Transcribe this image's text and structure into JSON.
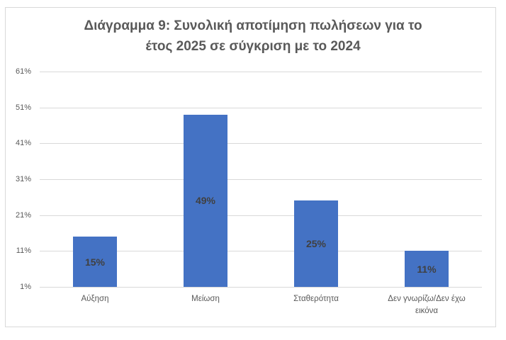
{
  "chart_data": {
    "type": "bar",
    "title": "Διάγραμμα 9: Συνολική αποτίμηση πωλήσεων για το έτος 2025 σε σύγκριση με το 2024",
    "title_lines": [
      "Διάγραμμα 9: Συνολική αποτίμηση πωλήσεων για το",
      "έτος 2025 σε σύγκριση με το 2024"
    ],
    "categories": [
      "Αύξηση",
      "Μείωση",
      "Σταθερότητα",
      "Δεν γνωρίζω/Δεν έχω εικόνα"
    ],
    "category_lines": [
      [
        "Αύξηση"
      ],
      [
        "Μείωση"
      ],
      [
        "Σταθερότητα"
      ],
      [
        "Δεν γνωρίζω/Δεν έχω",
        "εικόνα"
      ]
    ],
    "values": [
      15,
      49,
      25,
      11
    ],
    "data_labels": [
      "15%",
      "49%",
      "25%",
      "11%"
    ],
    "xlabel": "",
    "ylabel": "",
    "ylim": [
      1,
      61
    ],
    "y_ticks": [
      "61%",
      "51%",
      "41%",
      "31%",
      "21%",
      "11%",
      "1%"
    ],
    "y_tick_values": [
      61,
      51,
      41,
      31,
      21,
      11,
      1
    ],
    "grid": true,
    "legend": null,
    "bar_color": "#4472c4"
  }
}
